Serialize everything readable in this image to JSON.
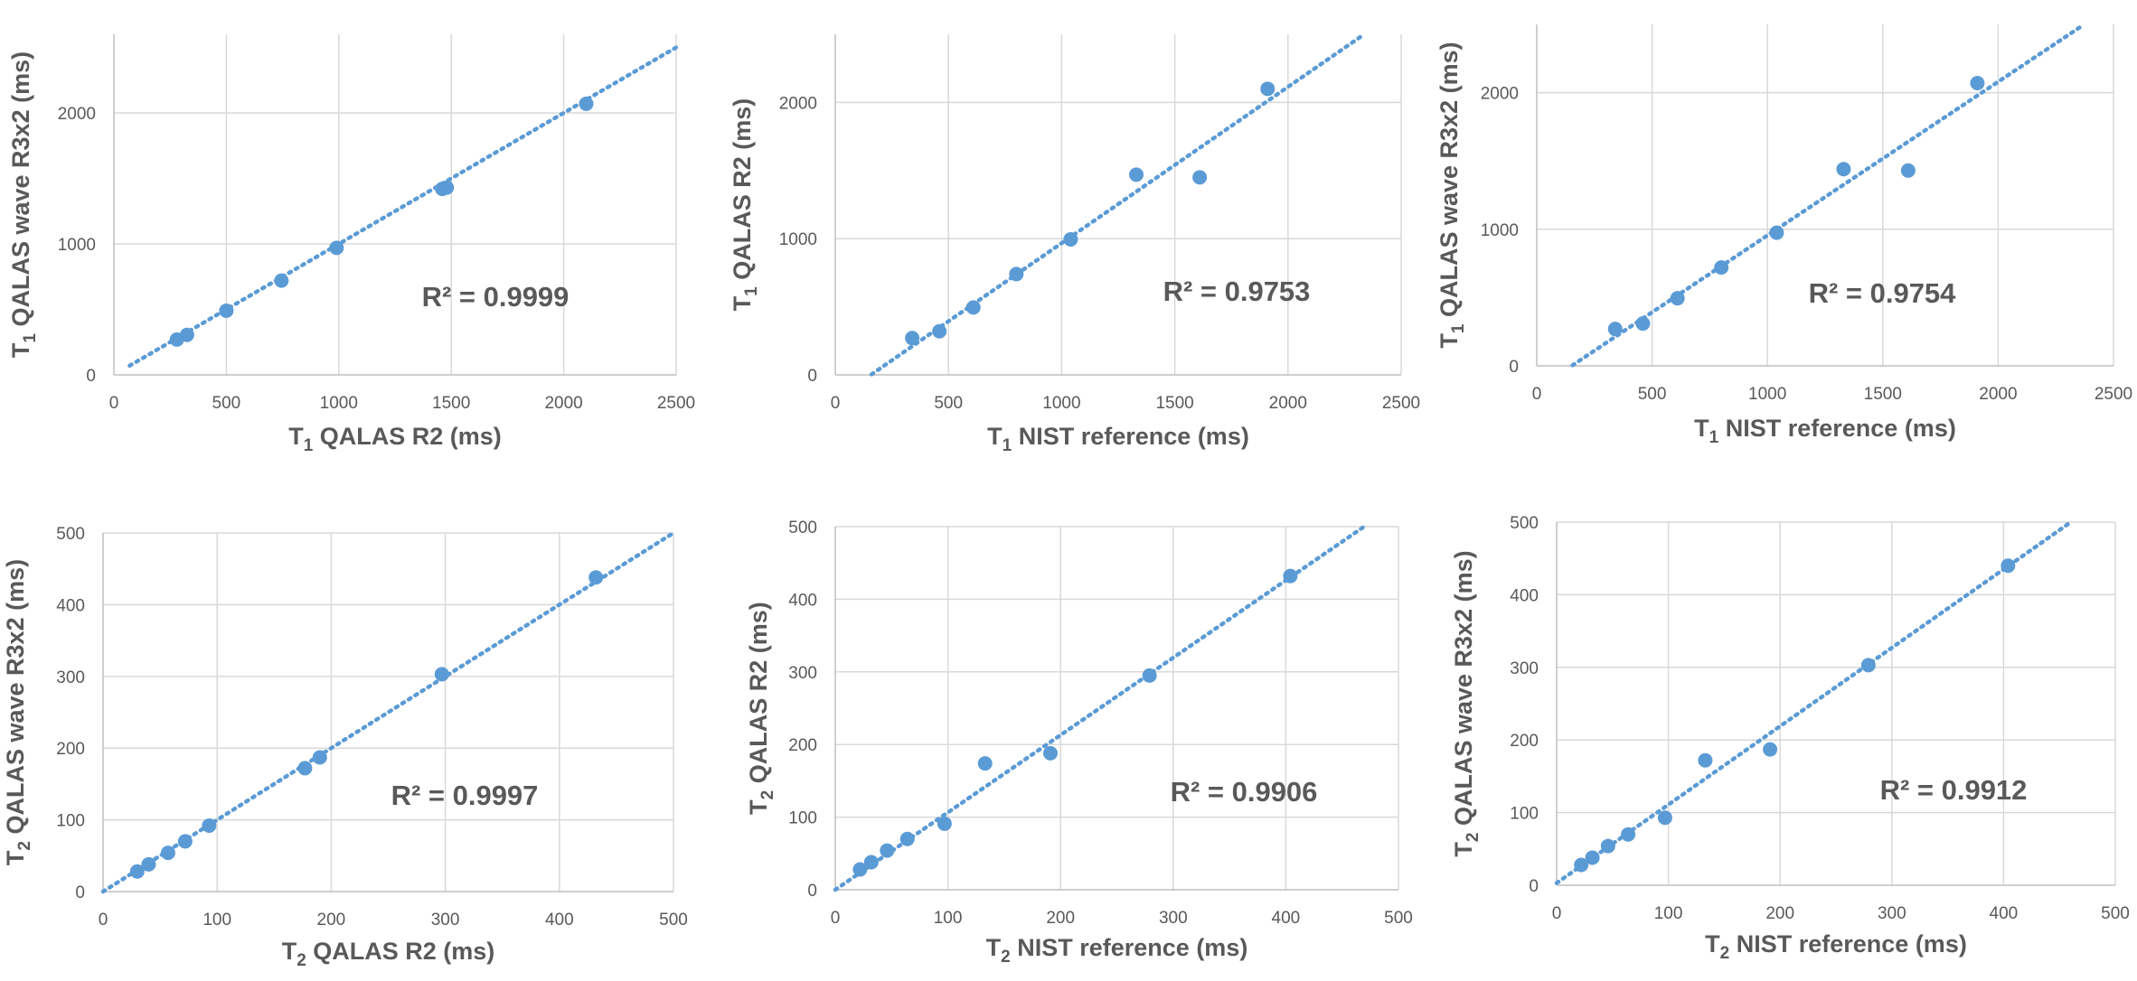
{
  "colors": {
    "points": "#5b9bd5",
    "trendline": "#5b9bd5",
    "grid": "#d9d9d9",
    "text": "#595959"
  },
  "chart_data": [
    {
      "type": "scatter",
      "xlabel": {
        "main": "T",
        "sub": "1",
        "rest": " QALAS R2 (ms)"
      },
      "ylabel": {
        "main": "T",
        "sub": "1",
        "rest": " QALAS wave R3x2 (ms)"
      },
      "xlim": [
        0,
        2500
      ],
      "ylim": [
        0,
        2600
      ],
      "xticks": [
        0,
        500,
        1000,
        1500,
        2000,
        2500
      ],
      "yticks": [
        0,
        1000,
        2000
      ],
      "grid": true,
      "annotation": "R² = 0.9999",
      "trendline": {
        "slope": 1.0,
        "intercept": 0,
        "x_range": [
          70,
          2500
        ]
      },
      "points": [
        [
          280,
          270
        ],
        [
          325,
          305
        ],
        [
          500,
          490
        ],
        [
          745,
          720
        ],
        [
          990,
          970
        ],
        [
          1460,
          1420
        ],
        [
          1480,
          1430
        ],
        [
          2100,
          2070
        ]
      ]
    },
    {
      "type": "scatter",
      "xlabel": {
        "main": "T",
        "sub": "1",
        "rest": " NIST reference (ms)"
      },
      "ylabel": {
        "main": "T",
        "sub": "1",
        "rest": " QALAS R2 (ms)"
      },
      "xlim": [
        0,
        2500
      ],
      "ylim": [
        0,
        2500
      ],
      "xticks": [
        0,
        500,
        1000,
        1500,
        2000,
        2500
      ],
      "yticks": [
        0,
        1000,
        2000
      ],
      "grid": true,
      "annotation": "R² = 0.9753",
      "trendline": {
        "slope": 1.147,
        "intercept": -180,
        "x_range": [
          160,
          2345
        ]
      },
      "points": [
        [
          340,
          270
        ],
        [
          460,
          320
        ],
        [
          610,
          495
        ],
        [
          800,
          740
        ],
        [
          1040,
          995
        ],
        [
          1330,
          1470
        ],
        [
          1610,
          1450
        ],
        [
          1910,
          2100
        ]
      ]
    },
    {
      "type": "scatter",
      "xlabel": {
        "main": "T",
        "sub": "1",
        "rest": " NIST reference (ms)"
      },
      "ylabel": {
        "main": "T",
        "sub": "1",
        "rest": " QALAS wave R3x2 (ms)"
      },
      "xlim": [
        0,
        2500
      ],
      "ylim": [
        0,
        2500
      ],
      "xticks": [
        0,
        500,
        1000,
        1500,
        2000,
        2500
      ],
      "yticks": [
        0,
        1000,
        2000
      ],
      "grid": true,
      "annotation": "R² = 0.9754",
      "trendline": {
        "slope": 1.125,
        "intercept": -170,
        "x_range": [
          155,
          2370
        ]
      },
      "points": [
        [
          340,
          270
        ],
        [
          460,
          310
        ],
        [
          610,
          495
        ],
        [
          800,
          720
        ],
        [
          1040,
          975
        ],
        [
          1330,
          1440
        ],
        [
          1610,
          1430
        ],
        [
          1910,
          2070
        ]
      ]
    },
    {
      "type": "scatter",
      "xlabel": {
        "main": "T",
        "sub": "2",
        "rest": " QALAS R2 (ms)"
      },
      "ylabel": {
        "main": "T",
        "sub": "2",
        "rest": " QALAS wave R3x2 (ms)"
      },
      "xlim": [
        0,
        500
      ],
      "ylim": [
        0,
        500
      ],
      "xticks": [
        0,
        100,
        200,
        300,
        400,
        500
      ],
      "yticks": [
        0,
        100,
        200,
        300,
        400,
        500
      ],
      "grid": true,
      "annotation": "R² = 0.9997",
      "trendline": {
        "slope": 1.0,
        "intercept": 0,
        "x_range": [
          0,
          500
        ]
      },
      "points": [
        [
          30,
          28
        ],
        [
          40,
          38
        ],
        [
          57,
          54
        ],
        [
          72,
          70
        ],
        [
          93,
          92
        ],
        [
          177,
          172
        ],
        [
          190,
          187
        ],
        [
          297,
          303
        ],
        [
          432,
          438
        ]
      ]
    },
    {
      "type": "scatter",
      "xlabel": {
        "main": "T",
        "sub": "2",
        "rest": " NIST reference (ms)"
      },
      "ylabel": {
        "main": "T",
        "sub": "2",
        "rest": " QALAS R2 (ms)"
      },
      "xlim": [
        0,
        500
      ],
      "ylim": [
        0,
        500
      ],
      "xticks": [
        0,
        100,
        200,
        300,
        400,
        500
      ],
      "yticks": [
        0,
        100,
        200,
        300,
        400,
        500
      ],
      "grid": true,
      "annotation": "R² = 0.9906",
      "trendline": {
        "slope": 1.065,
        "intercept": 0,
        "x_range": [
          0,
          470
        ]
      },
      "points": [
        [
          22,
          28
        ],
        [
          32,
          38
        ],
        [
          46,
          54
        ],
        [
          64,
          70
        ],
        [
          97,
          91
        ],
        [
          133,
          174
        ],
        [
          191,
          188
        ],
        [
          279,
          295
        ],
        [
          404,
          432
        ]
      ]
    },
    {
      "type": "scatter",
      "xlabel": {
        "main": "T",
        "sub": "2",
        "rest": " NIST reference (ms)"
      },
      "ylabel": {
        "main": "T",
        "sub": "2",
        "rest": " QALAS wave R3x2 (ms)"
      },
      "xlim": [
        0,
        500
      ],
      "ylim": [
        0,
        500
      ],
      "xticks": [
        0,
        100,
        200,
        300,
        400,
        500
      ],
      "yticks": [
        0,
        100,
        200,
        300,
        400,
        500
      ],
      "grid": true,
      "annotation": "R² = 0.9912",
      "trendline": {
        "slope": 1.08,
        "intercept": 3,
        "x_range": [
          0,
          460
        ]
      },
      "points": [
        [
          22,
          28
        ],
        [
          32,
          38
        ],
        [
          46,
          54
        ],
        [
          64,
          70
        ],
        [
          97,
          93
        ],
        [
          133,
          172
        ],
        [
          191,
          187
        ],
        [
          279,
          303
        ],
        [
          404,
          440
        ]
      ]
    }
  ]
}
